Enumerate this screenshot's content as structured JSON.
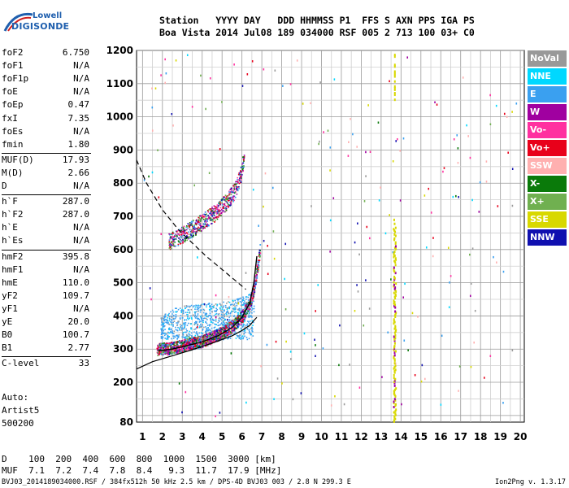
{
  "logo": {
    "line1": "Lowell",
    "line2": "DIGISONDE"
  },
  "header": {
    "labels": [
      "Station",
      "YYYY",
      "DAY",
      "DDD",
      "HHMMSS",
      "P1",
      "FFS",
      "S",
      "AXN",
      "PPS",
      "IGA",
      "PS"
    ],
    "values": [
      "Boa Vista",
      "2014",
      "Jul08",
      "189",
      "034000",
      "RSF",
      "005",
      "2",
      "713",
      "100",
      "03+",
      "C0"
    ]
  },
  "params": [
    {
      "k": "foF2",
      "v": "6.750"
    },
    {
      "k": "foF1",
      "v": "N/A"
    },
    {
      "k": "foF1p",
      "v": "N/A"
    },
    {
      "k": "foE",
      "v": "N/A"
    },
    {
      "k": "foEp",
      "v": "0.47"
    },
    {
      "k": "fxI",
      "v": "7.35"
    },
    {
      "k": "foEs",
      "v": "N/A"
    },
    {
      "k": "fmin",
      "v": "1.80"
    },
    {
      "k": "MUF(D)",
      "v": "17.93"
    },
    {
      "k": "M(D)",
      "v": "2.66"
    },
    {
      "k": "D",
      "v": "N/A"
    },
    {
      "k": "h`F",
      "v": "287.0"
    },
    {
      "k": "h`F2",
      "v": "287.0"
    },
    {
      "k": "h`E",
      "v": "N/A"
    },
    {
      "k": "h`Es",
      "v": "N/A"
    },
    {
      "k": "hmF2",
      "v": "395.8"
    },
    {
      "k": "hmF1",
      "v": "N/A"
    },
    {
      "k": "hmE",
      "v": "110.0"
    },
    {
      "k": "yF2",
      "v": "109.7"
    },
    {
      "k": "yF1",
      "v": "N/A"
    },
    {
      "k": "yE",
      "v": "20.0"
    },
    {
      "k": "B0",
      "v": "100.7"
    },
    {
      "k": "B1",
      "v": "2.77"
    },
    {
      "k": "C-level",
      "v": "33"
    }
  ],
  "auto_block": {
    "line1": "Auto:",
    "line2": "Artist5",
    "line3": "500200"
  },
  "legend": [
    {
      "label": "NoVal",
      "color": "#999999"
    },
    {
      "label": "NNE",
      "color": "#00d8ff"
    },
    {
      "label": "E",
      "color": "#3aa0f0"
    },
    {
      "label": "W",
      "color": "#a000a0"
    },
    {
      "label": "Vo-",
      "color": "#ff30a0"
    },
    {
      "label": "Vo+",
      "color": "#e8001a"
    },
    {
      "label": "SSW",
      "color": "#ffb0b0"
    },
    {
      "label": "X-",
      "color": "#0a7a0a"
    },
    {
      "label": "X+",
      "color": "#70b050"
    },
    {
      "label": "SSE",
      "color": "#d8d800"
    },
    {
      "label": "NNW",
      "color": "#1010b0"
    }
  ],
  "muf_table": {
    "d_label": "D",
    "muf_label": "MUF",
    "d_values": [
      "100",
      "200",
      "400",
      "600",
      "800",
      "1000",
      "1500",
      "3000"
    ],
    "d_unit": "[km]",
    "muf_values": [
      "7.1",
      "7.2",
      "7.4",
      "7.8",
      "8.4",
      "9.3",
      "11.7",
      "17.9"
    ],
    "muf_unit": "[MHz]"
  },
  "footer": {
    "left": "BVJ03_2014189034000.RSF / 384fx512h 50 kHz 2.5 km / DPS-4D BVJ03 003 / 2.8 N 299.3 E",
    "right": "Ion2Png v. 1.3.17"
  },
  "chart_data": {
    "type": "scatter",
    "x_ticks": [
      1,
      2,
      3,
      4,
      5,
      6,
      7,
      8,
      9,
      10,
      11,
      12,
      13,
      14,
      15,
      16,
      17,
      18,
      19,
      20
    ],
    "y_ticks": [
      80,
      200,
      300,
      400,
      500,
      600,
      700,
      800,
      900,
      1000,
      1100,
      1200
    ],
    "xlim": [
      0.7,
      20.2
    ],
    "ylim": [
      80,
      1200
    ],
    "grid": true,
    "legend_position": "right",
    "profile_solid": {
      "x": [
        0.7,
        1.5,
        2.5,
        3.5,
        4.5,
        5.5,
        6.0,
        6.4,
        6.6,
        6.75
      ],
      "y": [
        240,
        262,
        280,
        298,
        318,
        340,
        356,
        372,
        386,
        396
      ]
    },
    "profile_dashed": {
      "x": [
        0.7,
        1.2,
        2.0,
        2.8,
        3.5,
        4.2,
        5.0,
        5.7,
        6.2
      ],
      "y": [
        870,
        800,
        720,
        660,
        620,
        580,
        540,
        505,
        480
      ]
    },
    "trace_fitted": {
      "x": [
        1.8,
        2.5,
        3.2,
        4.0,
        4.8,
        5.5,
        6.0,
        6.4,
        6.6,
        6.75
      ],
      "y": [
        295,
        300,
        310,
        322,
        340,
        365,
        395,
        440,
        500,
        580
      ]
    },
    "ordinary_trace_band": {
      "x": [
        1.7,
        2.5,
        3.2,
        4.0,
        4.8,
        5.5,
        6.0,
        6.4,
        6.6,
        6.8,
        6.9
      ],
      "y": [
        300,
        305,
        315,
        325,
        345,
        370,
        400,
        440,
        490,
        560,
        610
      ]
    },
    "second_hop_band": {
      "x": [
        2.3,
        2.8,
        3.4,
        4.0,
        4.6,
        5.2,
        5.6,
        5.9,
        6.1
      ],
      "y": [
        625,
        640,
        660,
        685,
        710,
        745,
        775,
        820,
        880
      ]
    },
    "oblique_cloud": {
      "x": [
        1.9,
        2.6,
        3.3,
        4.0,
        4.8,
        5.5,
        6.1,
        6.6
      ],
      "y": [
        360,
        385,
        395,
        400,
        400,
        410,
        420,
        440
      ]
    },
    "interference_line_x": 13.65
  }
}
